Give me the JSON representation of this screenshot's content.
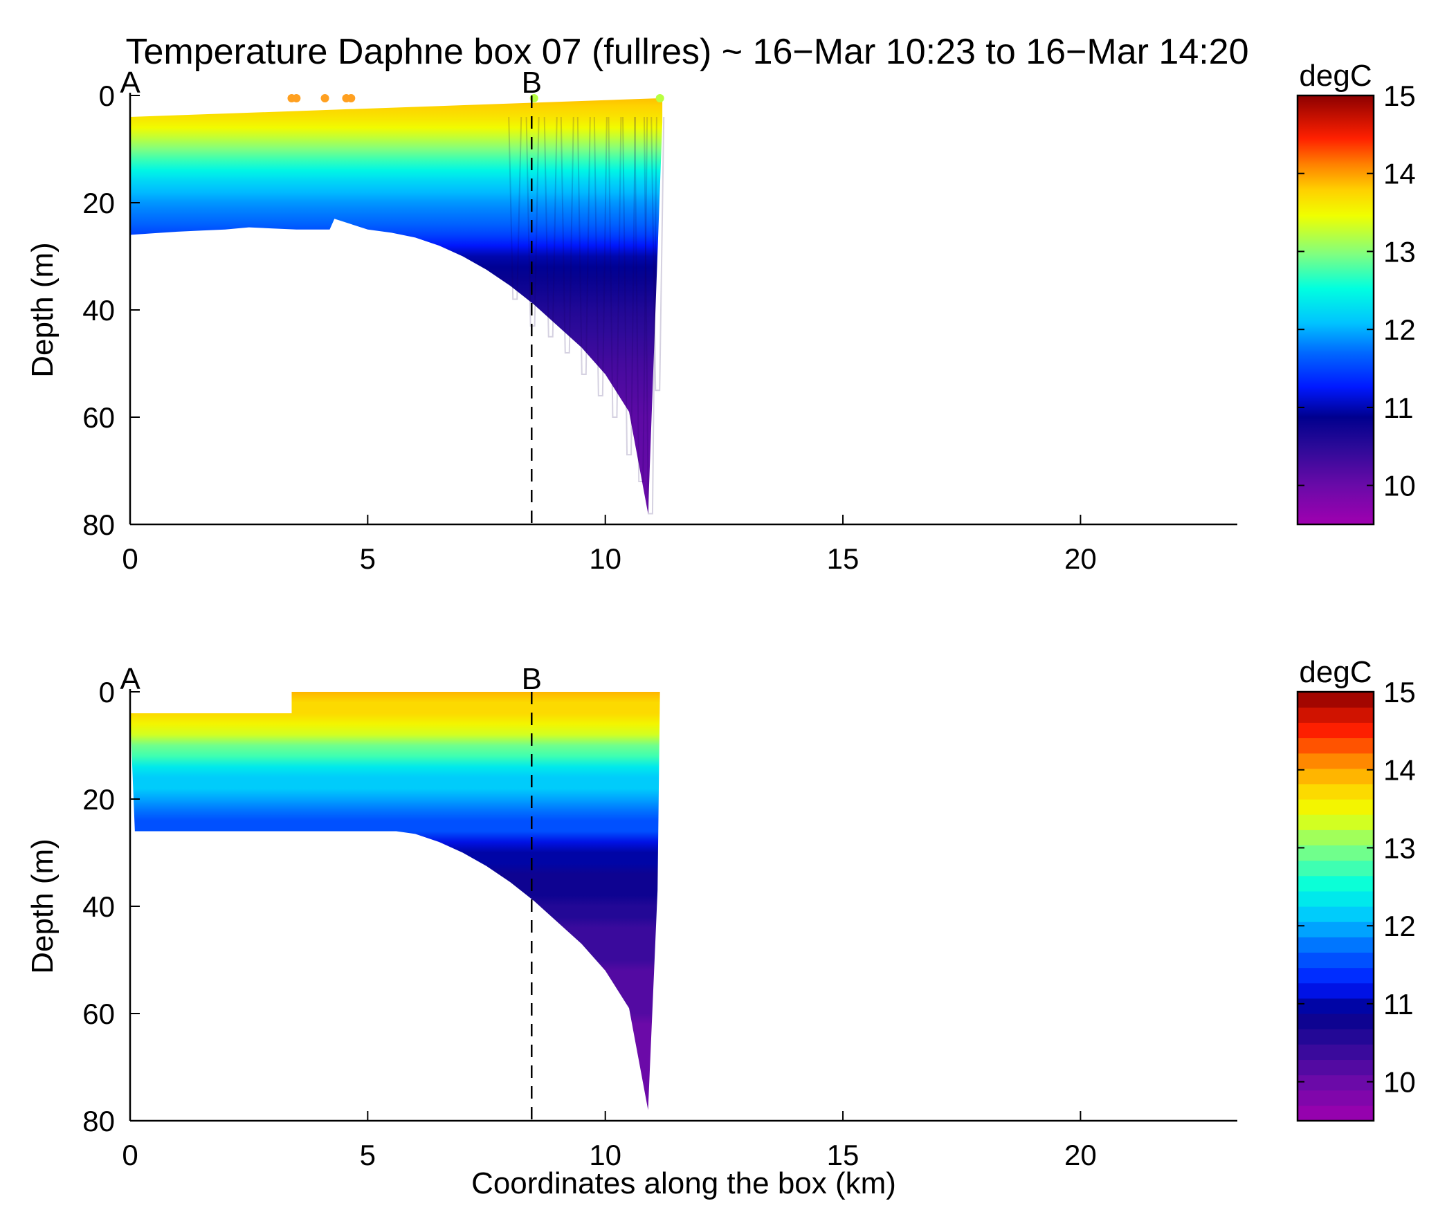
{
  "figure": {
    "title": "Temperature Daphne box 07 (fullres) ~ 16−Mar 10:23 to 16−Mar 14:20"
  },
  "chart_data": [
    {
      "type": "scatter",
      "subtype": "section-dots",
      "ylabel": "Depth (m)",
      "xlabel": "",
      "xlim": [
        0,
        23.3
      ],
      "ylim": [
        0,
        80
      ],
      "y_reversed": true,
      "xticks": [
        "0",
        "5",
        "10",
        "15",
        "20"
      ],
      "yticks": [
        "0",
        "20",
        "40",
        "60",
        "80"
      ],
      "markers": [
        {
          "label": "A",
          "x": 0
        },
        {
          "label": "B",
          "x": 8.45
        }
      ],
      "colorbar": {
        "label": "degC",
        "min": 9.5,
        "max": 15,
        "ticks": [
          "10",
          "11",
          "12",
          "13",
          "14",
          "15"
        ],
        "discrete": false
      },
      "bottom_depth_profile": [
        [
          0,
          26
        ],
        [
          0.5,
          25.7
        ],
        [
          1,
          25.4
        ],
        [
          1.5,
          25.2
        ],
        [
          2,
          25
        ],
        [
          2.5,
          24.6
        ],
        [
          3,
          24.8
        ],
        [
          3.5,
          25
        ],
        [
          4,
          25
        ],
        [
          4.2,
          25
        ],
        [
          4.3,
          23
        ],
        [
          5,
          25
        ],
        [
          5.5,
          25.6
        ],
        [
          6,
          26.5
        ],
        [
          6.5,
          28
        ],
        [
          7,
          30
        ],
        [
          7.5,
          32.5
        ],
        [
          8,
          35.5
        ],
        [
          8.5,
          39
        ],
        [
          9,
          43
        ],
        [
          9.5,
          47
        ],
        [
          10,
          52
        ],
        [
          10.5,
          59
        ],
        [
          10.9,
          78
        ],
        [
          11.2,
          5
        ]
      ],
      "casts_x": [
        8.1,
        8.47,
        8.85,
        9.2,
        9.55,
        9.9,
        10.2,
        10.5,
        10.75,
        10.95,
        11.1
      ],
      "casts_depth": [
        38,
        43,
        45,
        48,
        52,
        56,
        60,
        67,
        72,
        78,
        55
      ],
      "surface_points": [
        [
          3.4,
          0
        ],
        [
          3.5,
          0
        ],
        [
          4.1,
          0
        ],
        [
          4.55,
          0
        ],
        [
          4.65,
          0
        ],
        [
          8.5,
          0
        ],
        [
          11.15,
          0
        ]
      ]
    },
    {
      "type": "heatmap",
      "subtype": "filled-contour",
      "ylabel": "Depth (m)",
      "xlabel": "Coordinates along the box (km)",
      "xlim": [
        0,
        23.3
      ],
      "ylim": [
        0,
        80
      ],
      "y_reversed": true,
      "xticks": [
        "0",
        "5",
        "10",
        "15",
        "20"
      ],
      "yticks": [
        "0",
        "20",
        "40",
        "60",
        "80"
      ],
      "markers": [
        {
          "label": "A",
          "x": 0
        },
        {
          "label": "B",
          "x": 8.45
        }
      ],
      "colorbar": {
        "label": "degC",
        "min": 9.5,
        "max": 15,
        "ticks": [
          "10",
          "11",
          "12",
          "13",
          "14",
          "15"
        ],
        "discrete": true,
        "levels": 28
      },
      "top_depth_profile": [
        [
          0,
          4
        ],
        [
          3.4,
          4
        ],
        [
          3.4,
          0
        ],
        [
          11.15,
          0
        ]
      ],
      "bottom_depth_profile": [
        [
          0.1,
          26
        ],
        [
          5.6,
          26
        ],
        [
          6,
          26.5
        ],
        [
          6.5,
          28
        ],
        [
          7,
          30
        ],
        [
          7.5,
          32.5
        ],
        [
          8,
          35.5
        ],
        [
          8.5,
          39
        ],
        [
          9,
          43
        ],
        [
          9.5,
          47
        ],
        [
          10,
          52
        ],
        [
          10.5,
          59
        ],
        [
          10.9,
          78
        ],
        [
          11.1,
          37
        ]
      ],
      "temperature_profile": {
        "depths": [
          0,
          5,
          10,
          15,
          20,
          25,
          30,
          40,
          50,
          60,
          78
        ],
        "temps": [
          13.9,
          13.6,
          13.0,
          12.3,
          11.9,
          11.6,
          11.0,
          10.6,
          10.3,
          10.1,
          10.0
        ]
      }
    }
  ]
}
